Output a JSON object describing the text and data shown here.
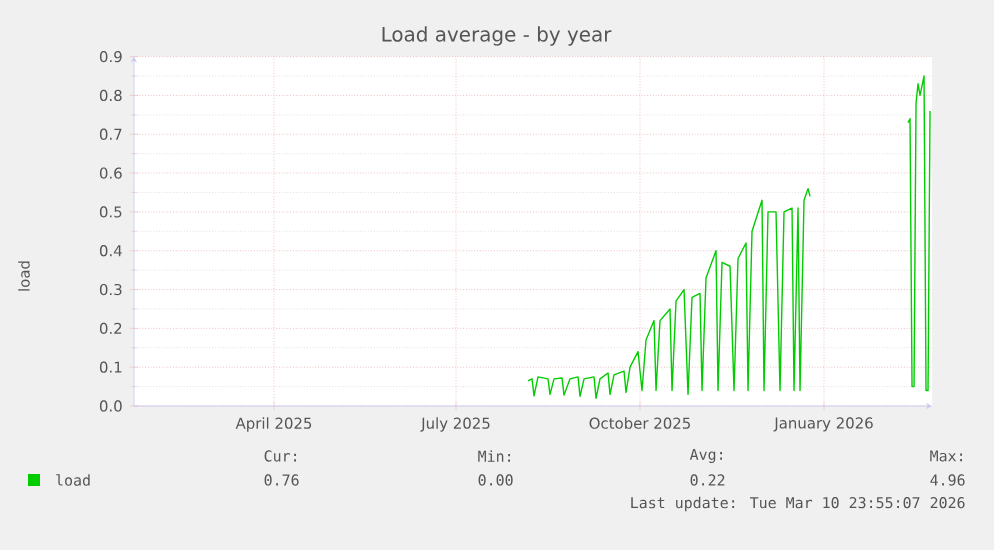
{
  "chart_data": {
    "type": "line",
    "title": "Load average - by year",
    "ylabel": "load",
    "x": [
      "2025-08-06",
      "2025-08-08",
      "2025-08-09",
      "2025-08-11",
      "2025-08-16",
      "2025-08-17",
      "2025-08-19",
      "2025-08-23",
      "2025-08-24",
      "2025-08-27",
      "2025-08-31",
      "2025-09-01",
      "2025-09-03",
      "2025-09-08",
      "2025-09-09",
      "2025-09-11",
      "2025-09-15",
      "2025-09-16",
      "2025-09-18",
      "2025-09-23",
      "2025-09-24",
      "2025-09-26",
      "2025-09-30",
      "2025-10-02",
      "2025-10-04",
      "2025-10-08",
      "2025-10-09",
      "2025-10-11",
      "2025-10-16",
      "2025-10-17",
      "2025-10-19",
      "2025-10-23",
      "2025-10-25",
      "2025-10-27",
      "2025-10-31",
      "2025-11-01",
      "2025-11-03",
      "2025-11-08",
      "2025-11-09",
      "2025-11-11",
      "2025-11-15",
      "2025-11-17",
      "2025-11-19",
      "2025-11-23",
      "2025-11-24",
      "2025-11-26",
      "2025-12-01",
      "2025-12-02",
      "2025-12-04",
      "2025-12-08",
      "2025-12-10",
      "2025-12-12",
      "2025-12-16",
      "2025-12-17",
      "2025-12-19",
      "2025-12-20",
      "2025-12-22",
      "2025-12-24",
      "2025-12-25",
      "2026-01-17",
      "2026-02-12",
      "2026-02-13",
      "2026-02-14",
      "2026-02-15",
      "2026-02-16",
      "2026-02-17",
      "2026-02-18",
      "2026-02-20",
      "2026-02-21",
      "2026-02-22",
      "2026-02-23"
    ],
    "series": [
      {
        "name": "load",
        "color": "#00cc00",
        "values": [
          0.065,
          0.07,
          0.026,
          0.075,
          0.07,
          0.03,
          0.07,
          0.072,
          0.028,
          0.07,
          0.075,
          0.025,
          0.07,
          0.075,
          0.02,
          0.07,
          0.085,
          0.03,
          0.08,
          0.09,
          0.035,
          0.1,
          0.14,
          0.04,
          0.17,
          0.22,
          0.04,
          0.22,
          0.25,
          0.04,
          0.27,
          0.3,
          0.03,
          0.28,
          0.29,
          0.04,
          0.33,
          0.4,
          0.04,
          0.37,
          0.36,
          0.04,
          0.38,
          0.42,
          0.04,
          0.45,
          0.53,
          0.04,
          0.5,
          0.5,
          0.04,
          0.5,
          0.51,
          0.04,
          0.51,
          0.04,
          0.53,
          0.56,
          0.54,
          null,
          0.73,
          0.74,
          0.05,
          0.05,
          0.78,
          0.83,
          0.8,
          0.85,
          0.04,
          0.04,
          0.76
        ]
      }
    ],
    "xlim": [
      "2025-01-21",
      "2026-02-24"
    ],
    "xticks": [
      {
        "value": "2025-04-01",
        "label": "April 2025"
      },
      {
        "value": "2025-07-01",
        "label": "July 2025"
      },
      {
        "value": "2025-10-01",
        "label": "October 2025"
      },
      {
        "value": "2026-01-01",
        "label": "January 2026"
      }
    ],
    "ylim": [
      0,
      0.9
    ],
    "yticks": [
      {
        "value": 0,
        "label": "0.0"
      },
      {
        "value": 0.1,
        "label": "0.1"
      },
      {
        "value": 0.2,
        "label": "0.2"
      },
      {
        "value": 0.3,
        "label": "0.3"
      },
      {
        "value": 0.4,
        "label": "0.4"
      },
      {
        "value": 0.5,
        "label": "0.5"
      },
      {
        "value": 0.6,
        "label": "0.6"
      },
      {
        "value": 0.7,
        "label": "0.7"
      },
      {
        "value": 0.8,
        "label": "0.8"
      },
      {
        "value": 0.9,
        "label": "0.9"
      }
    ],
    "grid": true,
    "legend": "bottom",
    "marker": "none",
    "line_style": "solid",
    "annotations": [
      "Cur:",
      "Min:",
      "Avg:",
      "Max:",
      "0.76",
      "0.00",
      "0.22",
      "4.96",
      "Last update: Tue Mar 10 23:55:07 2026"
    ]
  }
}
